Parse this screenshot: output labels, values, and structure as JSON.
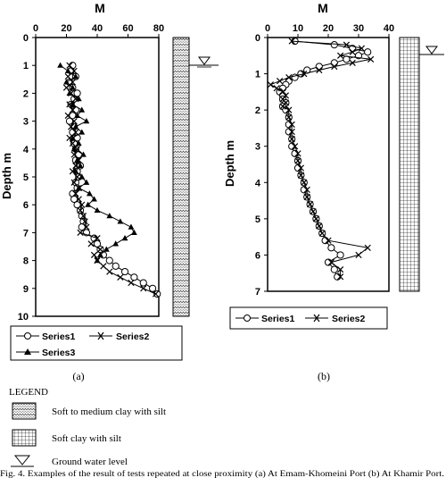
{
  "caption": "Fig. 4. Examples of the result of tests repeated at close proximity (a) At Emam-Khomeini Port (b) At Khamir Port.",
  "legend": {
    "title": "LEGEND",
    "items": [
      {
        "label": "Soft to medium clay with silt",
        "pattern": "zigzag"
      },
      {
        "label": "Soft clay with silt",
        "pattern": "grid"
      },
      {
        "label": "Ground water level",
        "pattern": "triangle"
      }
    ]
  },
  "colors": {
    "ink": "#000000",
    "background": "#ffffff"
  },
  "chart_data": [
    {
      "type": "line",
      "panel_label": "(a)",
      "xlabel": "M",
      "ylabel": "Depth m",
      "xlim": [
        0,
        80
      ],
      "ylim": [
        0,
        10
      ],
      "x_ticks": [
        "0",
        "20",
        "40",
        "60",
        "80"
      ],
      "y_ticks": [
        "0",
        "1",
        "2",
        "3",
        "4",
        "5",
        "6",
        "7",
        "8",
        "9",
        "10"
      ],
      "y_inverted": true,
      "x_axis_position": "top",
      "legend_placement": "bottom",
      "water_level_depth": 1.0,
      "soil_column": {
        "pattern": "zigzag",
        "from_depth": 0,
        "to_depth": 10
      },
      "series": [
        {
          "name": "Series1",
          "marker": "circle",
          "depth": [
            1.0,
            1.2,
            1.4,
            1.6,
            1.8,
            2.0,
            2.2,
            2.4,
            2.6,
            2.8,
            3.0,
            3.2,
            3.4,
            3.6,
            3.8,
            4.0,
            4.2,
            4.4,
            4.6,
            4.8,
            5.0,
            5.2,
            5.4,
            5.6,
            5.8,
            6.0,
            6.2,
            6.4,
            6.6,
            6.8,
            7.0,
            7.2,
            7.4,
            7.6,
            7.8,
            8.0,
            8.2,
            8.4,
            8.6,
            8.8,
            9.0,
            9.2
          ],
          "M": [
            24,
            23,
            26,
            22,
            24,
            27,
            25,
            23,
            26,
            24,
            22,
            25,
            24,
            27,
            25,
            26,
            28,
            26,
            29,
            27,
            28,
            26,
            27,
            24,
            25,
            27,
            29,
            30,
            31,
            30,
            33,
            38,
            40,
            42,
            44,
            48,
            52,
            58,
            64,
            70,
            76,
            79
          ]
        },
        {
          "name": "Series2",
          "marker": "x",
          "depth": [
            1.0,
            1.2,
            1.4,
            1.6,
            1.8,
            2.0,
            2.2,
            2.4,
            2.6,
            2.8,
            3.0,
            3.2,
            3.4,
            3.6,
            3.8,
            4.0,
            4.2,
            4.4,
            4.6,
            4.8,
            5.0,
            5.2,
            5.4,
            5.6,
            5.8,
            6.0,
            6.2,
            6.4,
            6.6,
            6.8,
            7.0,
            7.2,
            7.4,
            7.6,
            7.8,
            8.0,
            8.2,
            8.4,
            8.6,
            8.8,
            9.0,
            9.2
          ],
          "M": [
            22,
            25,
            21,
            24,
            20,
            23,
            26,
            22,
            24,
            21,
            25,
            23,
            26,
            22,
            24,
            27,
            25,
            28,
            26,
            24,
            27,
            25,
            28,
            26,
            28,
            30,
            29,
            31,
            32,
            33,
            29,
            40,
            36,
            42,
            38,
            40,
            44,
            48,
            55,
            62,
            70,
            78
          ]
        },
        {
          "name": "Series3",
          "marker": "triangle",
          "depth": [
            1.0,
            1.2,
            1.4,
            1.6,
            1.8,
            2.0,
            2.2,
            2.4,
            2.6,
            2.8,
            3.0,
            3.2,
            3.4,
            3.6,
            3.8,
            4.0,
            4.2,
            4.4,
            4.6,
            4.8,
            5.0,
            5.2,
            5.4,
            5.6,
            5.8,
            6.0,
            6.2,
            6.4,
            6.6,
            6.8,
            7.0,
            7.2,
            7.4,
            7.6,
            7.8,
            8.0
          ],
          "M": [
            16,
            21,
            26,
            20,
            24,
            22,
            28,
            24,
            30,
            27,
            33,
            26,
            30,
            24,
            28,
            25,
            31,
            27,
            29,
            26,
            30,
            33,
            28,
            35,
            38,
            34,
            40,
            48,
            55,
            62,
            64,
            58,
            52,
            46,
            42,
            40
          ]
        }
      ]
    },
    {
      "type": "line",
      "panel_label": "(b)",
      "xlabel": "M",
      "ylabel": "Depth m",
      "xlim": [
        0,
        40
      ],
      "ylim": [
        0,
        7
      ],
      "x_ticks": [
        "0",
        "10",
        "20",
        "30",
        "40"
      ],
      "y_ticks": [
        "0",
        "1",
        "2",
        "3",
        "4",
        "5",
        "6",
        "7"
      ],
      "y_inverted": true,
      "x_axis_position": "top",
      "legend_placement": "bottom",
      "water_level_depth": 0.4,
      "soil_column": {
        "pattern": "grid",
        "from_depth": 0,
        "to_depth": 7
      },
      "series": [
        {
          "name": "Series1",
          "marker": "circle",
          "depth": [
            0.1,
            0.2,
            0.3,
            0.4,
            0.5,
            0.6,
            0.7,
            0.8,
            0.9,
            1.0,
            1.1,
            1.2,
            1.3,
            1.4,
            1.5,
            1.6,
            1.7,
            1.8,
            1.9,
            2.0,
            2.2,
            2.4,
            2.6,
            2.8,
            3.0,
            3.2,
            3.4,
            3.6,
            3.8,
            4.0,
            4.2,
            4.4,
            4.6,
            4.8,
            5.0,
            5.2,
            5.4,
            5.6,
            5.8,
            6.0,
            6.2,
            6.4,
            6.6
          ],
          "M": [
            9,
            22,
            28,
            33,
            30,
            26,
            22,
            17,
            13,
            11,
            9,
            7,
            6,
            5,
            4,
            5,
            5,
            6,
            5,
            6,
            7,
            7,
            7,
            8,
            8,
            9,
            10,
            10,
            11,
            12,
            12,
            13,
            14,
            15,
            16,
            17,
            18,
            19,
            21,
            24,
            20,
            22,
            23
          ]
        },
        {
          "name": "Series2",
          "marker": "x",
          "depth": [
            0.1,
            0.2,
            0.3,
            0.4,
            0.5,
            0.6,
            0.7,
            0.8,
            0.9,
            1.0,
            1.1,
            1.2,
            1.3,
            1.4,
            1.5,
            1.6,
            1.7,
            1.8,
            1.9,
            2.0,
            2.2,
            2.4,
            2.6,
            2.8,
            3.0,
            3.2,
            3.4,
            3.6,
            3.8,
            4.0,
            4.2,
            4.4,
            4.6,
            4.8,
            5.0,
            5.2,
            5.4,
            5.6,
            5.8,
            6.0,
            6.2,
            6.4,
            6.6
          ],
          "M": [
            8,
            26,
            31,
            28,
            24,
            34,
            28,
            22,
            17,
            12,
            7,
            4,
            1,
            3,
            5,
            6,
            5,
            6,
            5,
            7,
            7,
            8,
            8,
            8,
            9,
            10,
            10,
            11,
            11,
            12,
            13,
            13,
            14,
            15,
            16,
            17,
            18,
            20,
            33,
            30,
            21,
            24,
            24
          ]
        }
      ]
    }
  ]
}
